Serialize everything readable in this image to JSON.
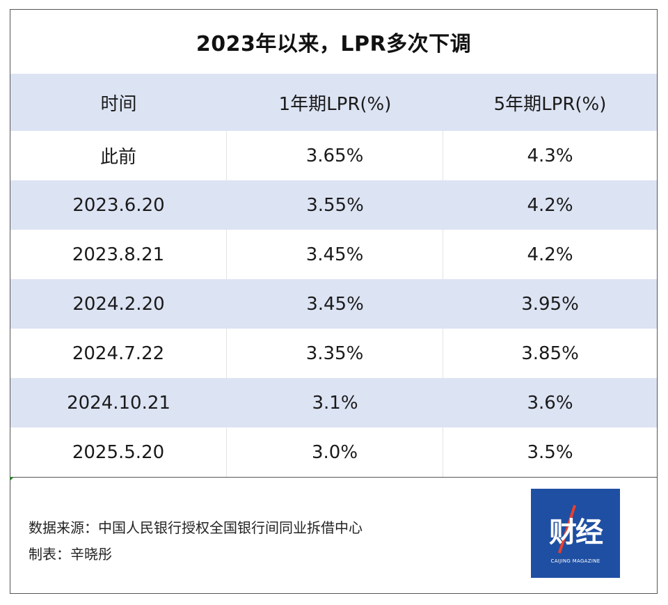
{
  "title": "2023年以来，LPR多次下调",
  "table": {
    "headers": [
      "时间",
      "1年期LPR(%)",
      "5年期LPR(%)"
    ],
    "rows": [
      [
        "此前",
        "3.65%",
        "4.3%"
      ],
      [
        "2023.6.20",
        "3.55%",
        "4.2%"
      ],
      [
        "2023.8.21",
        "3.45%",
        "4.2%"
      ],
      [
        "2024.2.20",
        "3.45%",
        "3.95%"
      ],
      [
        "2024.7.22",
        "3.35%",
        "3.85%"
      ],
      [
        "2024.10.21",
        "3.1%",
        "3.6%"
      ],
      [
        "2025.5.20",
        "3.0%",
        "3.5%"
      ]
    ]
  },
  "footer": {
    "source": "数据来源：中国人民银行授权全国银行间同业拆借中心",
    "author": "制表：辛晓彤"
  },
  "logo": {
    "chinese": "财经",
    "english": "CAIJING MAGAZINE",
    "bg_color": "#1f4fa3",
    "accent_color": "#e8402e"
  },
  "colors": {
    "header_bg": "#dce3f3",
    "stripe_bg": "#dce3f3",
    "border": "#555555"
  }
}
